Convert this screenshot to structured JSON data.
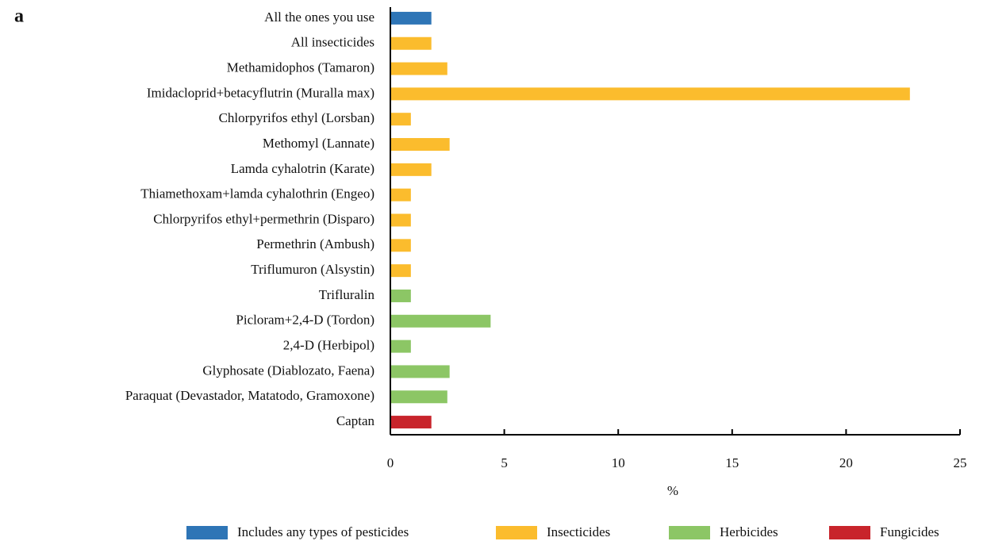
{
  "chart_data": {
    "type": "hbar",
    "panel_label": "a",
    "xlabel": "%",
    "categories": [
      "All the ones you use",
      "All insecticides",
      "Methamidophos (Tamaron)",
      "Imidacloprid+betacyflutrin (Muralla max)",
      "Chlorpyrifos ethyl (Lorsban)",
      "Methomyl (Lannate)",
      "Lamda cyhalotrin (Karate)",
      "Thiamethoxam+lamda cyhalothrin (Engeo)",
      "Chlorpyrifos ethyl+permethrin (Disparo)",
      "Permethrin  (Ambush)",
      "Triflumuron (Alsystin)",
      "Trifluralin",
      "Picloram+2,4-D (Tordon)",
      "2,4-D (Herbipol)",
      "Glyphosate  (Diablozato, Faena)",
      "Paraquat (Devastador, Matatodo, Gramoxone)",
      "Captan"
    ],
    "series": [
      {
        "name": "Includes any types of pesticides",
        "color": "#2e75b6",
        "values": [
          1.8,
          null,
          null,
          null,
          null,
          null,
          null,
          null,
          null,
          null,
          null,
          null,
          null,
          null,
          null,
          null,
          null
        ]
      },
      {
        "name": "Insecticides",
        "color": "#fbbc2d",
        "values": [
          null,
          1.8,
          2.5,
          22.8,
          0.9,
          2.6,
          1.8,
          0.9,
          0.9,
          0.9,
          0.9,
          null,
          null,
          null,
          null,
          null,
          null
        ]
      },
      {
        "name": "Herbicides",
        "color": "#8cc665",
        "values": [
          null,
          null,
          null,
          null,
          null,
          null,
          null,
          null,
          null,
          null,
          null,
          0.9,
          4.4,
          0.9,
          2.6,
          2.5,
          null
        ]
      },
      {
        "name": "Fungicides",
        "color": "#c8242b",
        "values": [
          null,
          null,
          null,
          null,
          null,
          null,
          null,
          null,
          null,
          null,
          null,
          null,
          null,
          null,
          null,
          null,
          1.8
        ]
      }
    ],
    "xlim": [
      0,
      25
    ],
    "xticks": [
      0,
      5,
      10,
      15,
      20,
      25
    ]
  }
}
